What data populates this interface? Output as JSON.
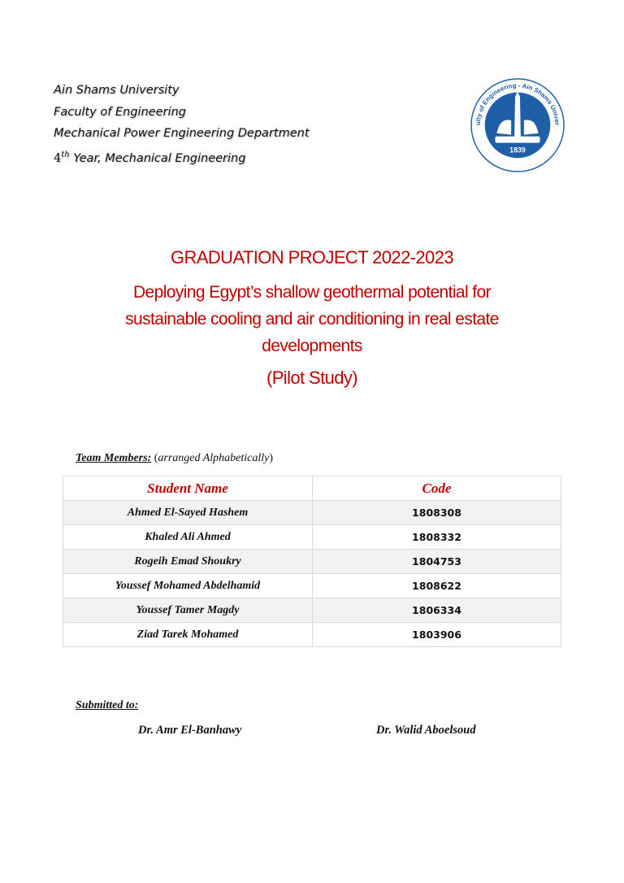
{
  "header": {
    "university": "Ain Shams University",
    "faculty": "Faculty of Engineering",
    "department": "Mechanical Power Engineering Department",
    "year_number": "4",
    "year_suffix": "th",
    "year_rest": " Year, Mechanical Engineering"
  },
  "logo": {
    "ring_text": "Faculty of Engineering - Ain Shams University",
    "year": "1839",
    "color": "#1f5fa8"
  },
  "title": {
    "project": "GRADUATION PROJECT 2022-2023",
    "line1": "Deploying Egypt’s shallow geothermal potential for",
    "line2": "sustainable cooling and air conditioning in real estate",
    "line3": "developments",
    "subtitle": "(Pilot Study)",
    "color": "#c00000"
  },
  "team": {
    "label": "Team Members:",
    "note_open": " (",
    "note": "arranged Alphabetically",
    "note_close": ")",
    "columns": [
      "Student Name",
      "Code"
    ],
    "rows": [
      {
        "name": "Ahmed El-Sayed Hashem",
        "code": "1808308"
      },
      {
        "name": "Khaled Ali Ahmed",
        "code": "1808332"
      },
      {
        "name": "Rogeih Emad Shoukry",
        "code": "1804753"
      },
      {
        "name": "Youssef Mohamed Abdelhamid",
        "code": "1808622"
      },
      {
        "name": "Youssef Tamer Magdy",
        "code": "1806334"
      },
      {
        "name": "Ziad Tarek Mohamed",
        "code": "1803906"
      }
    ]
  },
  "submitted": {
    "label": "Submitted to:",
    "supervisors": [
      "Dr. Amr El-Banhawy",
      "Dr. Walid Aboelsoud"
    ]
  }
}
